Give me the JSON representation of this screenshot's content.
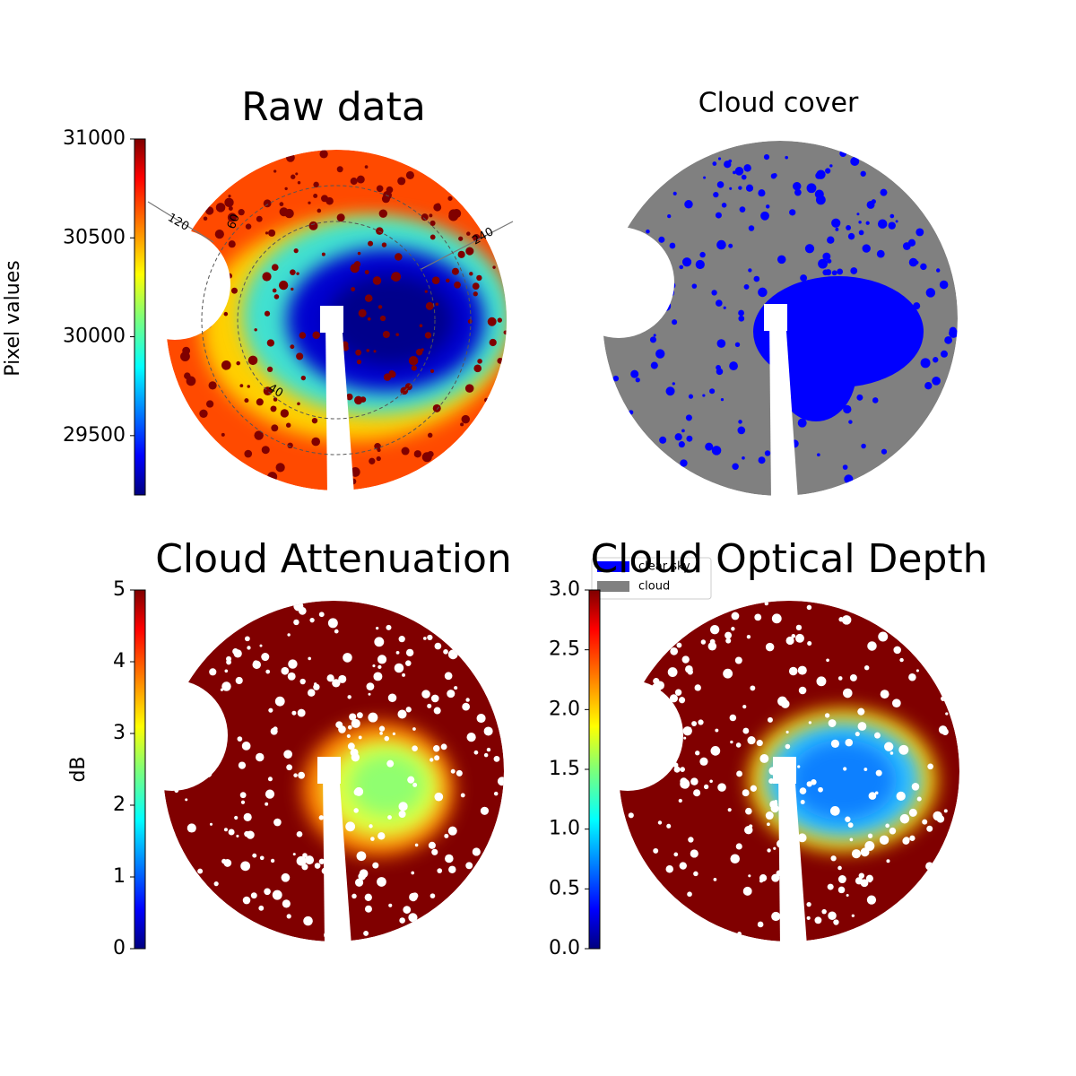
{
  "chart_data": [
    {
      "type": "image",
      "title": "Raw data",
      "colorbar_label": "Pixel values",
      "colormap": "jet",
      "ylim": [
        29200,
        31000
      ],
      "yticks": [
        29500,
        30000,
        30500,
        31000
      ],
      "annotations": [
        "120",
        "60",
        "240",
        "40"
      ]
    },
    {
      "type": "image",
      "title": "Cloud cover",
      "series": [
        {
          "name": "clear sky",
          "color": "#0000ff"
        },
        {
          "name": "cloud",
          "color": "#808080"
        }
      ]
    },
    {
      "type": "image",
      "title": "Cloud Attenuation",
      "colorbar_label": "dB",
      "colormap": "jet",
      "ylim": [
        0,
        5
      ],
      "yticks": [
        0,
        1,
        2,
        3,
        4,
        5
      ]
    },
    {
      "type": "image",
      "title": "Cloud Optical Depth",
      "colormap": "jet",
      "ylim": [
        0,
        3
      ],
      "yticks": [
        {
          "value": 0,
          "label": "0.0"
        },
        0.5,
        {
          "value": 1,
          "label": "1.0"
        },
        1.5,
        {
          "value": 2,
          "label": "2.0"
        },
        2.5,
        {
          "value": 3,
          "label": "3.0"
        }
      ]
    }
  ]
}
